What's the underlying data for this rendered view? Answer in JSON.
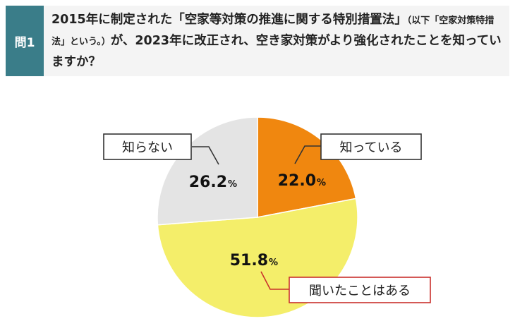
{
  "question": {
    "tag": "問1",
    "text_main_1": "2015年に制定された「空家等対策の推進に関する特別措置法」",
    "text_small_1": "（以下「空家対策特措法」という。）",
    "text_main_2": "が、2023年に改正され、空き家対策がより強化されたことを知っていますか？"
  },
  "chart_data": {
    "type": "pie",
    "start_angle_deg": 0,
    "direction": "clockwise",
    "slices": [
      {
        "label": "知っている",
        "value": 22.0,
        "value_text": "22.0",
        "color": "#f0870f"
      },
      {
        "label": "聞いたことはある",
        "value": 51.8,
        "value_text": "51.8",
        "color": "#f4ee6a"
      },
      {
        "label": "知らない",
        "value": 26.2,
        "value_text": "26.2",
        "color": "#e4e4e4"
      }
    ],
    "unit": "%",
    "label_border_colors": [
      "#333333",
      "#c9302c",
      "#333333"
    ]
  }
}
